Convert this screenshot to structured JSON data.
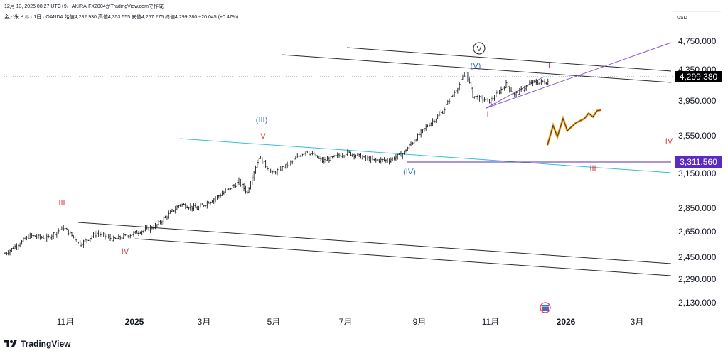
{
  "header": {
    "line1": "12月 13, 2025 08:27 UTC+9、AKIRA-FX2004がTradingView.comで作成",
    "line2": "金／米ドル · 1日 · OANDA  始値4,282.930  高値4,353.555  安値4,257.275  終値4,299.380  +20.045 (+0.47%)"
  },
  "currency_label": "USD",
  "footer": {
    "brand": "TradingView"
  },
  "price_tags": {
    "last": "4,299.380",
    "level": "3,311.560"
  },
  "colors": {
    "candle": "#222222",
    "channel": "#2b2b2b",
    "cyan_line": "#34c0cf",
    "purple_line": "#8a55d8",
    "level_tag": "#5a2bc2",
    "last_tag": "#000000",
    "wave_blue": "#3a6fc8",
    "wave_red": "#e0393e",
    "projection": "#f4a020"
  },
  "chart_data": {
    "type": "candlestick",
    "symbol": "金／米ドル",
    "interval": "1日",
    "exchange": "OANDA",
    "ohlc": {
      "open": 4282.93,
      "high": 4353.555,
      "low": 4257.275,
      "close": 4299.38,
      "change": 20.045,
      "change_pct": 0.47
    },
    "y_ticks": [
      "4,750.000",
      "4,350.000",
      "3,950.000",
      "3,550.000",
      "3,150.000",
      "2,850.000",
      "2,650.000",
      "2,450.000",
      "2,290.000",
      "2,130.000"
    ],
    "x_ticks": [
      {
        "label": "11月",
        "bold": false
      },
      {
        "label": "2025",
        "bold": true
      },
      {
        "label": "3月",
        "bold": false
      },
      {
        "label": "5月",
        "bold": false
      },
      {
        "label": "7月",
        "bold": false
      },
      {
        "label": "9月",
        "bold": false
      },
      {
        "label": "11月",
        "bold": false
      },
      {
        "label": "2026",
        "bold": true
      },
      {
        "label": "3月",
        "bold": false
      }
    ],
    "wave_labels": {
      "top_circle": "V",
      "blue": [
        "(III)",
        "(IV)",
        "(V)"
      ],
      "red": [
        "III",
        "IV",
        "V",
        "I",
        "II",
        "III",
        "IV"
      ]
    },
    "price_path": [
      [
        0,
        2500
      ],
      [
        15,
        2640
      ],
      [
        25,
        2620
      ],
      [
        35,
        2710
      ],
      [
        45,
        2575
      ],
      [
        55,
        2660
      ],
      [
        65,
        2610
      ],
      [
        75,
        2650
      ],
      [
        90,
        2720
      ],
      [
        105,
        2910
      ],
      [
        115,
        2870
      ],
      [
        130,
        3000
      ],
      [
        140,
        3100
      ],
      [
        145,
        3010
      ],
      [
        152,
        3350
      ],
      [
        160,
        3180
      ],
      [
        170,
        3280
      ],
      [
        180,
        3420
      ],
      [
        190,
        3310
      ],
      [
        205,
        3400
      ],
      [
        220,
        3320
      ],
      [
        230,
        3320
      ],
      [
        238,
        3390
      ],
      [
        252,
        3680
      ],
      [
        262,
        3860
      ],
      [
        272,
        4200
      ],
      [
        276,
        4355
      ],
      [
        280,
        4050
      ],
      [
        290,
        3980
      ],
      [
        300,
        4200
      ],
      [
        305,
        4060
      ],
      [
        315,
        4220
      ],
      [
        325,
        4230
      ]
    ],
    "projection_path": [
      [
        0,
        3480
      ],
      [
        8,
        3700
      ],
      [
        14,
        3570
      ],
      [
        22,
        3780
      ],
      [
        28,
        3640
      ],
      [
        40,
        3730
      ],
      [
        52,
        3780
      ],
      [
        58,
        3840
      ],
      [
        64,
        3800
      ],
      [
        70,
        3870
      ],
      [
        76,
        3880
      ]
    ],
    "levels": [
      4299.38,
      3311.56
    ]
  }
}
